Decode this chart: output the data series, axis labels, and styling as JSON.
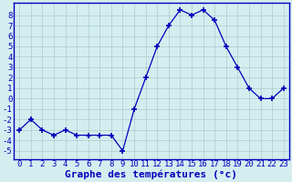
{
  "hours": [
    0,
    1,
    2,
    3,
    4,
    5,
    6,
    7,
    8,
    9,
    10,
    11,
    12,
    13,
    14,
    15,
    16,
    17,
    18,
    19,
    20,
    21,
    22,
    23
  ],
  "temperatures": [
    -3,
    -2,
    -3,
    -3.5,
    -3,
    -3.5,
    -3.5,
    -3.5,
    -3.5,
    -5,
    -1,
    2,
    5,
    7,
    8.5,
    8,
    8.5,
    7.5,
    5,
    3,
    1,
    0,
    0,
    1
  ],
  "line_color": "#0000bb",
  "marker": "+",
  "marker_size": 5,
  "bg_color": "#d4eef0",
  "plot_bg_color": "#d4eef0",
  "grid_color": "#aacccc",
  "xlabel": "Graphe des températures (°c)",
  "xlabel_color": "#0000bb",
  "xlabel_fontsize": 8,
  "ylabel_ticks": [
    -5,
    -4,
    -3,
    -2,
    -1,
    0,
    1,
    2,
    3,
    4,
    5,
    6,
    7,
    8
  ],
  "tick_color": "#0000bb",
  "tick_fontsize": 6.5,
  "ylim": [
    -5.8,
    9.2
  ],
  "xlim": [
    -0.5,
    23.5
  ],
  "border_color": "#0000bb"
}
